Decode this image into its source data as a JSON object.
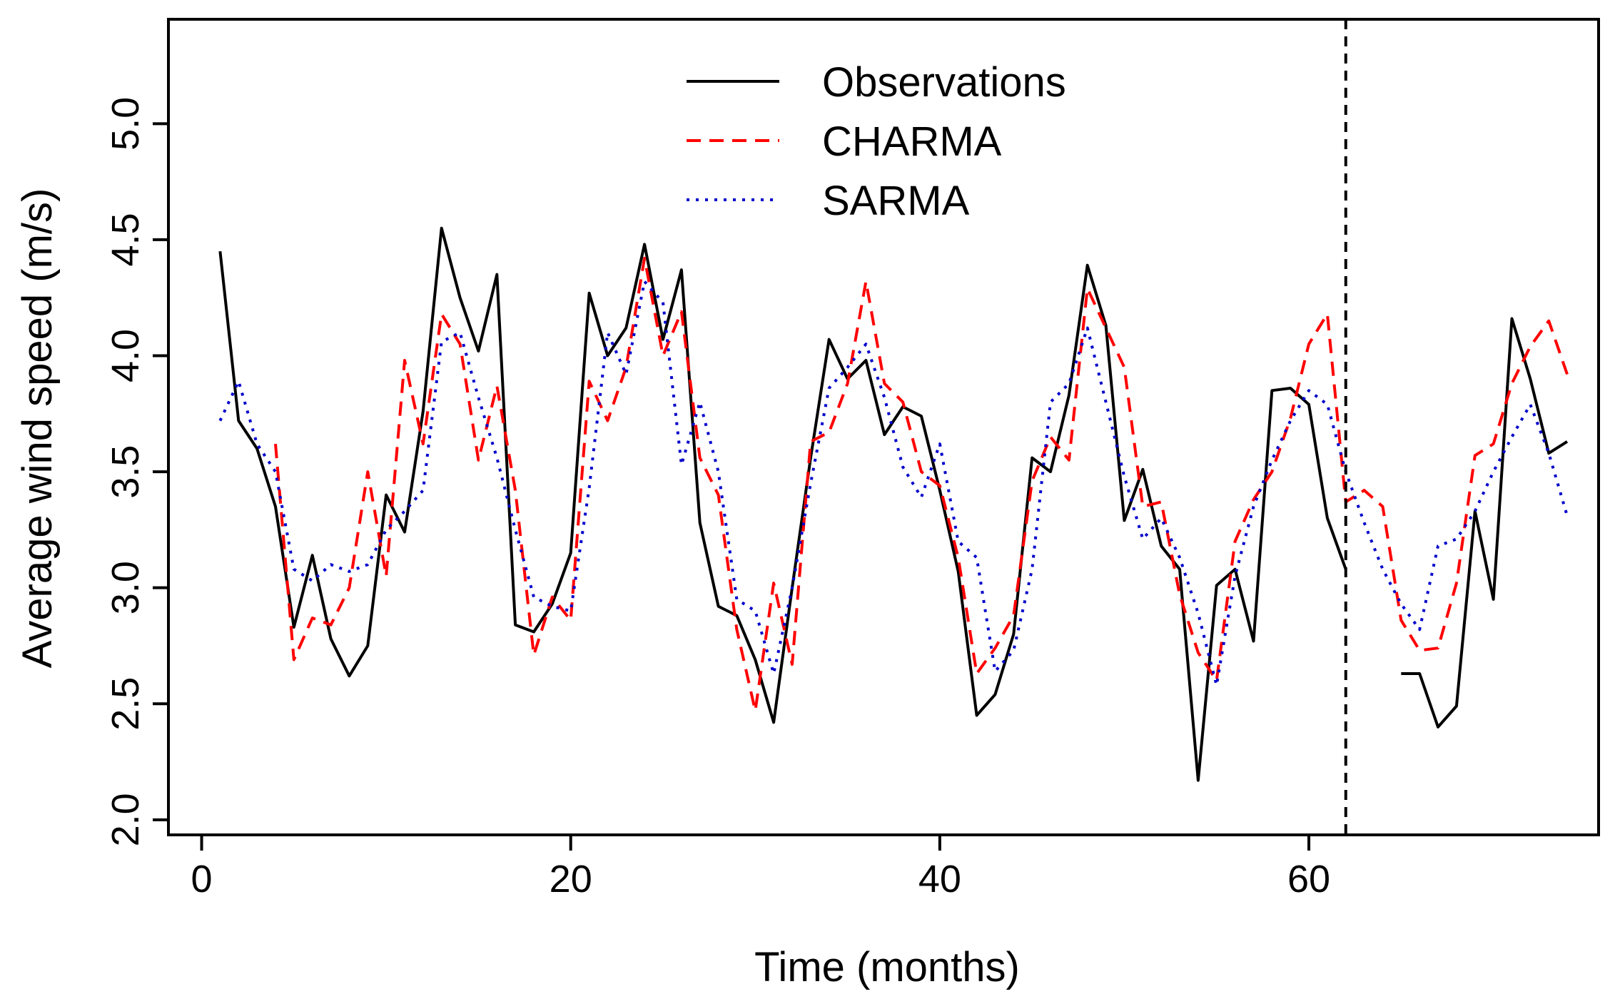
{
  "chart_data": {
    "type": "line",
    "title": "",
    "xlabel": "Time (months)",
    "ylabel": "Average wind speed (m/s)",
    "xlim": [
      -1.8,
      75.7
    ],
    "ylim": [
      1.935,
      5.45
    ],
    "xticks": [
      0,
      20,
      40,
      60
    ],
    "yticks": [
      2.0,
      2.5,
      3.0,
      3.5,
      4.0,
      4.5,
      5.0
    ],
    "xtick_labels": [
      "0",
      "20",
      "40",
      "60"
    ],
    "ytick_labels": [
      "2.0",
      "2.5",
      "3.0",
      "3.5",
      "4.0",
      "4.5",
      "5.0"
    ],
    "grid": false,
    "legend_position": "top-center",
    "vline": {
      "x": 62,
      "style": "dashed",
      "color": "#000000"
    },
    "series": [
      {
        "name": "Observations",
        "color": "#000000",
        "style": "solid",
        "segments": [
          {
            "x": [
              1,
              2,
              3,
              4,
              5,
              6,
              7,
              8,
              9,
              10,
              11,
              12,
              13,
              14,
              15,
              16,
              17,
              18,
              19,
              20,
              21,
              22,
              23,
              24,
              25,
              26,
              27,
              28,
              29,
              30,
              31,
              32,
              33,
              34,
              35,
              36,
              37,
              38,
              39,
              40,
              41,
              42,
              43,
              44,
              45,
              46,
              47,
              48,
              49,
              50,
              51,
              52,
              53,
              54,
              55,
              56,
              57,
              58,
              59,
              60,
              61,
              62
            ],
            "y": [
              4.45,
              3.72,
              3.6,
              3.35,
              2.83,
              3.14,
              2.78,
              2.62,
              2.75,
              3.4,
              3.24,
              3.76,
              4.55,
              4.25,
              4.02,
              4.35,
              2.84,
              2.81,
              2.93,
              3.15,
              4.27,
              4.0,
              4.12,
              4.48,
              4.07,
              4.37,
              3.28,
              2.92,
              2.88,
              2.69,
              2.42,
              3.0,
              3.56,
              4.07,
              3.9,
              3.98,
              3.66,
              3.78,
              3.74,
              3.42,
              3.07,
              2.45,
              2.54,
              2.8,
              3.56,
              3.5,
              3.83,
              4.39,
              4.13,
              3.29,
              3.51,
              3.18,
              3.08,
              2.17,
              3.01,
              3.08,
              2.77,
              3.85,
              3.86,
              3.79,
              3.3,
              3.08
            ]
          },
          {
            "x": [
              65,
              66,
              67,
              68,
              69,
              70,
              71,
              72,
              73,
              74
            ],
            "y": [
              2.63,
              2.63,
              2.4,
              2.49,
              3.33,
              2.95,
              4.16,
              3.9,
              3.58,
              3.63
            ]
          }
        ]
      },
      {
        "name": "CHARMA",
        "color": "#ff0000",
        "style": "dashed",
        "segments": [
          {
            "x": [
              1,
              2,
              3,
              4,
              5,
              6,
              7,
              8,
              9,
              10,
              11,
              12,
              13,
              14,
              15,
              16,
              17,
              18,
              19,
              20,
              21,
              22,
              23,
              24,
              25,
              26,
              27,
              28,
              29,
              30,
              31,
              32,
              33,
              34,
              35,
              36,
              37,
              38,
              39,
              40,
              41,
              42,
              43,
              44,
              45,
              46,
              47,
              48,
              49,
              50,
              51,
              52,
              53,
              54,
              55,
              56,
              57,
              58,
              59,
              60,
              61,
              62,
              63,
              64,
              65,
              66,
              67,
              68,
              69,
              70,
              71,
              72,
              73,
              74
            ],
            "y": [
              null,
              null,
              null,
              3.62,
              2.69,
              2.87,
              2.84,
              3.0,
              3.5,
              3.05,
              3.98,
              3.62,
              4.18,
              4.05,
              3.55,
              3.87,
              3.42,
              2.71,
              2.96,
              2.86,
              3.89,
              3.72,
              3.95,
              4.42,
              4.0,
              4.19,
              3.56,
              3.4,
              2.82,
              2.47,
              3.02,
              2.67,
              3.63,
              3.67,
              3.88,
              4.32,
              3.88,
              3.8,
              3.5,
              3.44,
              3.13,
              2.63,
              2.74,
              2.88,
              3.46,
              3.65,
              3.55,
              4.29,
              4.12,
              3.95,
              3.35,
              3.37,
              2.97,
              2.72,
              2.6,
              3.2,
              3.38,
              3.5,
              3.73,
              4.05,
              4.18,
              3.37,
              3.42,
              3.35,
              2.86,
              2.73,
              2.74,
              3.02,
              3.57,
              3.62,
              3.88,
              4.04,
              4.15,
              3.92
            ]
          }
        ]
      },
      {
        "name": "SARMA",
        "color": "#0000cc",
        "style": "dotted",
        "segments": [
          {
            "x": [
              1,
              2,
              3,
              4,
              5,
              6,
              7,
              8,
              9,
              10,
              11,
              12,
              13,
              14,
              15,
              16,
              17,
              18,
              19,
              20,
              21,
              22,
              23,
              24,
              25,
              26,
              27,
              28,
              29,
              30,
              31,
              32,
              33,
              34,
              35,
              36,
              37,
              38,
              39,
              40,
              41,
              42,
              43,
              44,
              45,
              46,
              47,
              48,
              49,
              50,
              51,
              52,
              53,
              54,
              55,
              56,
              57,
              58,
              59,
              60,
              61,
              62,
              63,
              64,
              65,
              66,
              67,
              68,
              69,
              70,
              71,
              72,
              73,
              74
            ],
            "y": [
              3.72,
              3.89,
              3.62,
              3.5,
              3.08,
              3.03,
              3.1,
              3.07,
              3.1,
              3.25,
              3.33,
              3.42,
              4.06,
              4.1,
              3.82,
              3.56,
              3.25,
              2.96,
              2.92,
              2.9,
              3.43,
              4.1,
              3.92,
              4.32,
              4.23,
              3.53,
              3.8,
              3.5,
              2.95,
              2.9,
              2.63,
              3.0,
              3.45,
              3.86,
              3.95,
              4.05,
              3.82,
              3.52,
              3.39,
              3.62,
              3.2,
              3.13,
              2.64,
              2.73,
              3.08,
              3.8,
              3.88,
              4.12,
              3.8,
              3.48,
              3.21,
              3.3,
              3.13,
              2.89,
              2.58,
              3.05,
              3.35,
              3.55,
              3.72,
              3.85,
              3.79,
              3.5,
              3.28,
              3.08,
              2.93,
              2.82,
              3.18,
              3.21,
              3.33,
              3.5,
              3.65,
              3.79,
              3.58,
              3.31
            ]
          }
        ]
      }
    ]
  }
}
